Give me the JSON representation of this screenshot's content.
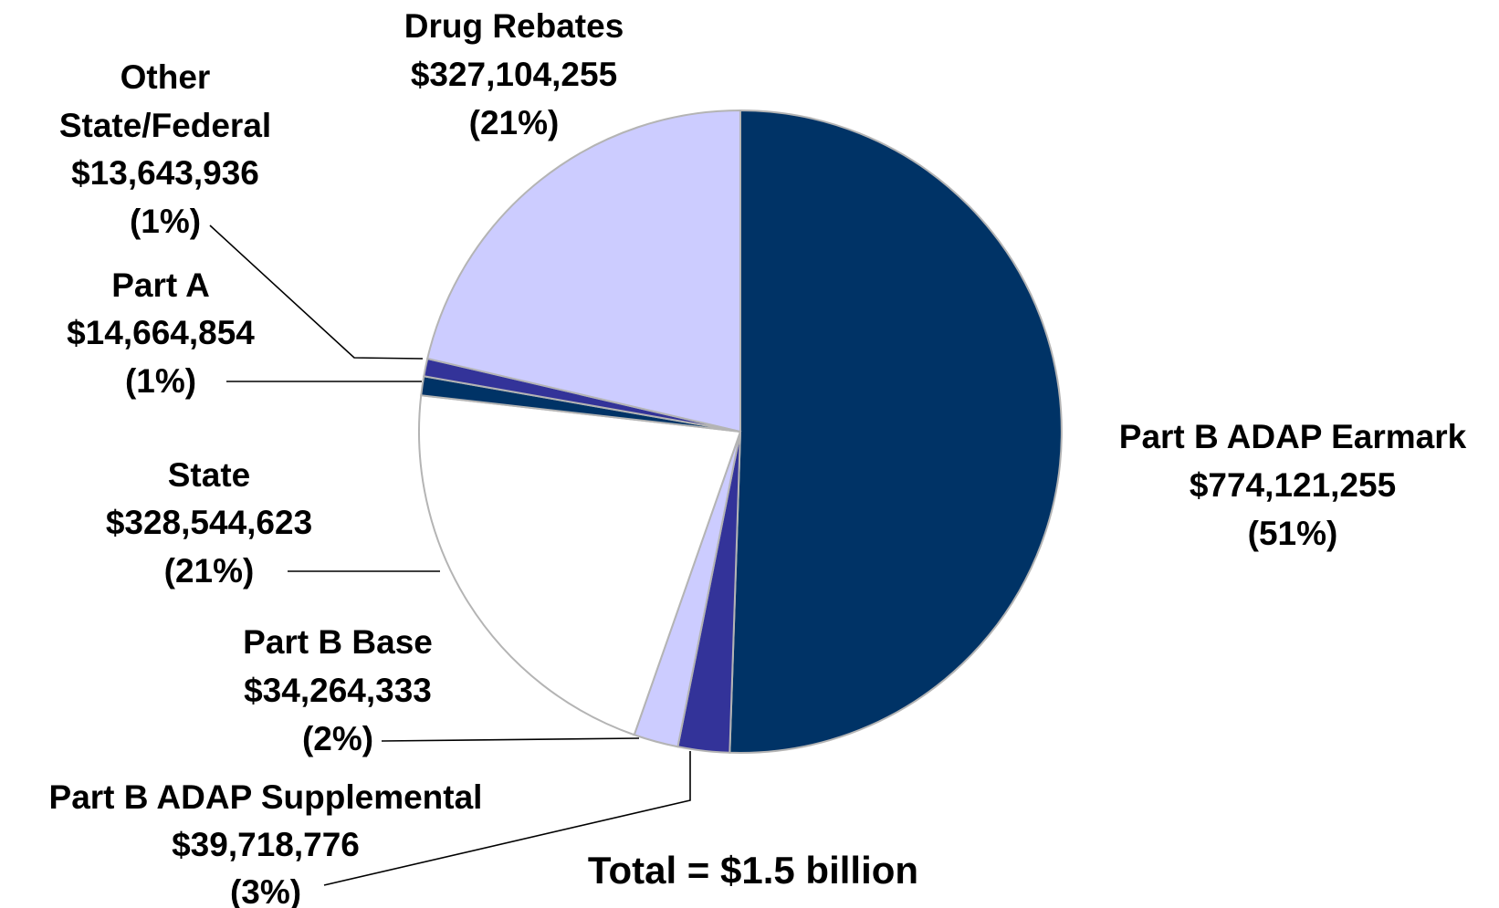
{
  "chart_data": {
    "type": "pie",
    "start_angle_deg": 0,
    "direction": "clockwise",
    "slices": [
      {
        "name": "Part B ADAP Earmark",
        "value": 774121255,
        "value_label": "$774,121,255",
        "percent_label": "(51%)",
        "color": "#003366"
      },
      {
        "name": "Part B ADAP Supplemental",
        "value": 39718776,
        "value_label": "$39,718,776",
        "percent_label": "(3%)",
        "color": "#333399"
      },
      {
        "name": "Part B Base",
        "value": 34264333,
        "value_label": "$34,264,333",
        "percent_label": "(2%)",
        "color": "#ccccff"
      },
      {
        "name": "State",
        "value": 328544623,
        "value_label": "$328,544,623",
        "percent_label": "(21%)",
        "color": "#ffffff"
      },
      {
        "name": "Part A",
        "value": 14664854,
        "value_label": "$14,664,854",
        "percent_label": "(1%)",
        "color": "#003366"
      },
      {
        "name": "Other State/Federal",
        "value": 13643936,
        "value_label": "$13,643,936",
        "percent_label": "(1%)",
        "color": "#333399"
      },
      {
        "name": "Drug Rebates",
        "value": 327104255,
        "value_label": "$327,104,255",
        "percent_label": "(21%)",
        "color": "#ccccff"
      }
    ],
    "label_lines": {
      "other_state_federal": [
        "Other",
        "State/Federal"
      ]
    },
    "total_label": "Total = $1.5 billion",
    "slice_border_color": "#b4b4b4",
    "leader_color": "#000000"
  }
}
